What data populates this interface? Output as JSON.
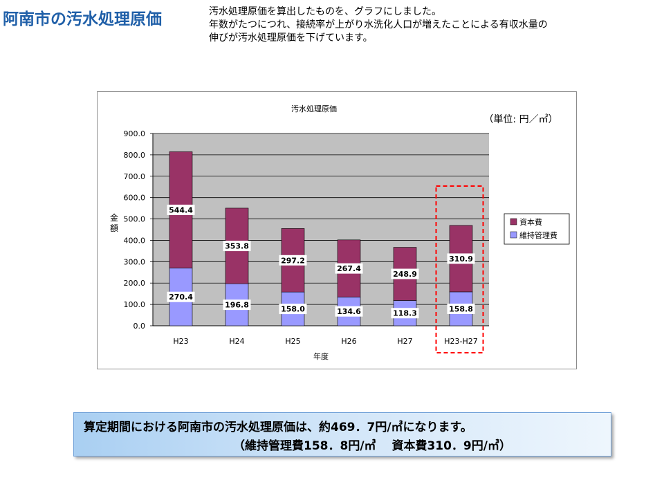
{
  "page": {
    "title": "阿南市の汚水処理原価",
    "intro": [
      "汚水処理原価を算出したものを、グラフにしました。",
      "年数がたつにつれ、接続率が上がり水洗化人口が増えたことによる有収水量の",
      "伸びが汚水処理原価を下げています。"
    ]
  },
  "summary": {
    "line1": "算定期間における阿南市の汚水処理原価は、約469．7円/㎥になります。",
    "line2": "（維持管理費158．8円/㎥　 資本費310．9円/㎥）"
  },
  "chart_data": {
    "type": "bar",
    "stacked": true,
    "title": "汚水処理原価",
    "unit_label": "（単位: 円／㎥）",
    "xlabel": "年度",
    "ylabel": "金額",
    "categories": [
      "H23",
      "H24",
      "H25",
      "H26",
      "H27",
      "H23-H27"
    ],
    "ylim": [
      0,
      900
    ],
    "yticks": [
      "0.0",
      "100.0",
      "200.0",
      "300.0",
      "400.0",
      "500.0",
      "600.0",
      "700.0",
      "800.0",
      "900.0"
    ],
    "grid": true,
    "legend_position": "right",
    "series": [
      {
        "name": "維持管理費",
        "color": "#9999ff",
        "values": [
          270.4,
          196.8,
          158.0,
          134.6,
          118.3,
          158.8
        ],
        "labels": [
          "270.4",
          "196.8",
          "158.0",
          "134.6",
          "118.3",
          "158.8"
        ]
      },
      {
        "name": "資本費",
        "color": "#993366",
        "values": [
          544.4,
          353.8,
          297.2,
          267.4,
          248.9,
          310.9
        ],
        "labels": [
          "544.4",
          "353.8",
          "297.2",
          "267.4",
          "248.9",
          "310.9"
        ]
      }
    ],
    "legend_order": [
      1,
      0
    ],
    "highlight": {
      "category_index": 5,
      "color": "#ff0000"
    },
    "colors": {
      "plot_background": "#c0c0c0",
      "gridline": "#000000"
    }
  }
}
